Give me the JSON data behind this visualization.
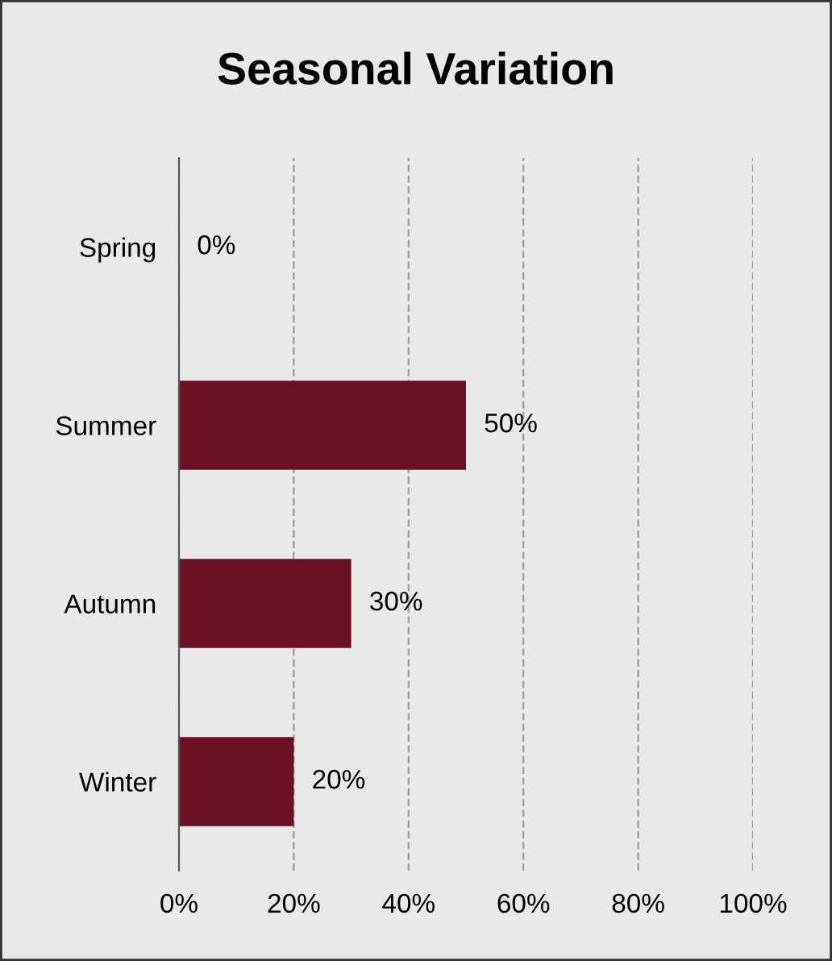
{
  "chart_data": {
    "type": "bar",
    "orientation": "horizontal",
    "title": "Seasonal Variation",
    "categories": [
      "Spring",
      "Summer",
      "Autumn",
      "Winter"
    ],
    "values": [
      0,
      50,
      30,
      20
    ],
    "color": "#6b0f24",
    "value_labels": [
      "0%",
      "50%",
      "30%",
      "20%"
    ],
    "xlim": [
      0,
      100
    ],
    "xticks": [
      {
        "value": 0,
        "label": "0%"
      },
      {
        "value": 20,
        "label": "20%"
      },
      {
        "value": 40,
        "label": "40%"
      },
      {
        "value": 60,
        "label": "60%"
      },
      {
        "value": 80,
        "label": "80%"
      },
      {
        "value": 100,
        "label": "100%"
      }
    ],
    "grid": "x",
    "legend": false
  }
}
